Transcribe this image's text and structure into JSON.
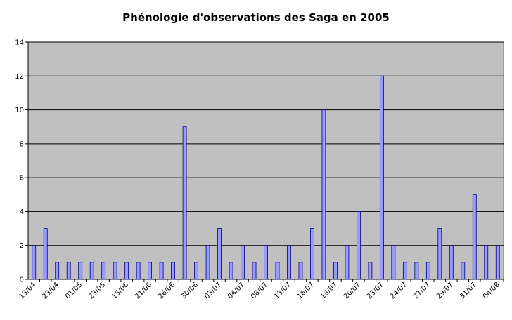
{
  "chart_data": {
    "type": "bar",
    "title": "Phénologie d'observations des Saga en 2005",
    "categories": [
      "13/04",
      null,
      "23/04",
      null,
      "01/05",
      null,
      "23/05",
      null,
      "15/06",
      null,
      "21/06",
      null,
      "26/06",
      null,
      "30/06",
      null,
      "03/07",
      null,
      "04/07",
      null,
      "08/07",
      null,
      "13/07",
      null,
      "16/07",
      null,
      "18/07",
      null,
      "20/07",
      null,
      "23/07",
      null,
      "24/07",
      null,
      "27/07",
      null,
      "29/07",
      null,
      "31/07",
      null,
      "04/08"
    ],
    "values": [
      2,
      3,
      1,
      1,
      1,
      1,
      1,
      1,
      1,
      1,
      1,
      1,
      1,
      9,
      1,
      2,
      3,
      1,
      2,
      1,
      2,
      1,
      2,
      1,
      3,
      10,
      1,
      2,
      4,
      1,
      12,
      2,
      1,
      1,
      1,
      3,
      2,
      1,
      5,
      2,
      2
    ],
    "color": "#9999ff",
    "ylim": [
      0,
      14
    ],
    "yticks": [
      0,
      2,
      4,
      6,
      8,
      10,
      12,
      14
    ],
    "grid": true
  }
}
